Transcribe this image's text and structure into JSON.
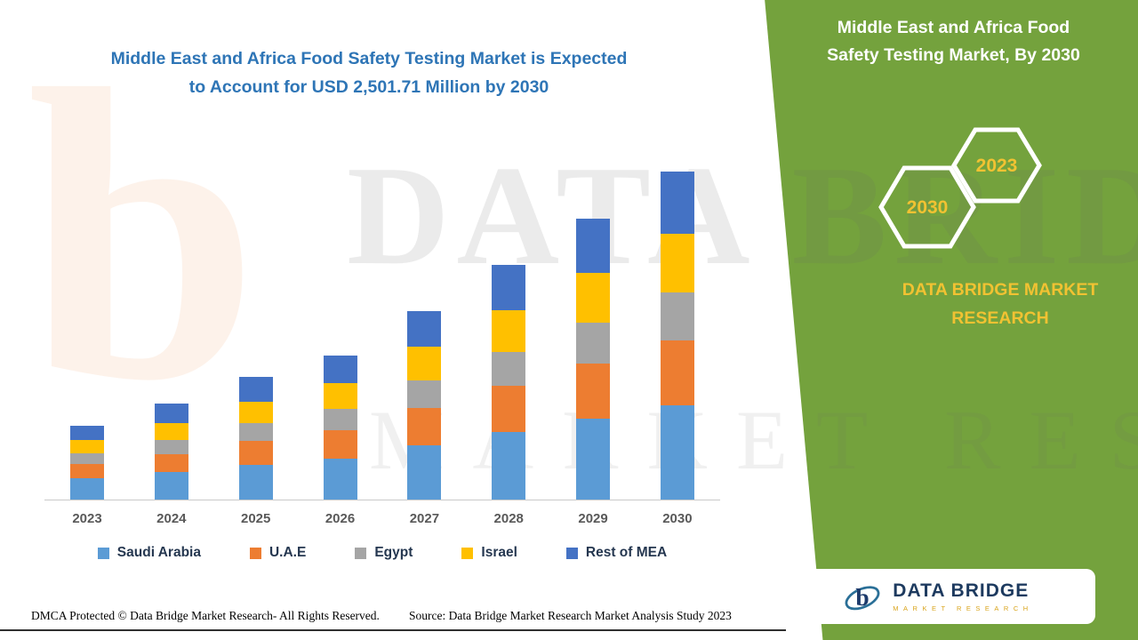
{
  "left_title": {
    "line1": "Middle East and Africa Food Safety Testing Market is Expected",
    "line2": "to Account for USD 2,501.71 Million by 2030"
  },
  "green_panel": {
    "title_line1": "Middle East and Africa Food",
    "title_line2": "Safety Testing Market, By 2030",
    "hex_back_year": "2030",
    "hex_front_year": "2023",
    "brand_line1": "DATA BRIDGE MARKET",
    "brand_line2": "RESEARCH"
  },
  "watermark": {
    "line1": "DATA BRIDGE",
    "line2": "MARKET RESEARCH",
    "logo_glyph": "b"
  },
  "logo_card": {
    "brand": "DATA BRIDGE",
    "tagline": "MARKET RESEARCH"
  },
  "footer": {
    "dmca": "DMCA Protected © Data Bridge Market Research- All Rights Reserved.",
    "source": "Source: Data Bridge Market Research Market Analysis Study 2023"
  },
  "colors": {
    "green_panel": "#74a23d",
    "title_blue": "#2e75b6",
    "accent_yellow": "#f1c232"
  },
  "chart_data": {
    "type": "bar",
    "stacked": true,
    "title": "Middle East and Africa Food Safety Testing Market is Expected to Account for USD 2,501.71 Million by 2030",
    "categories": [
      "2023",
      "2024",
      "2025",
      "2026",
      "2027",
      "2028",
      "2029",
      "2030"
    ],
    "series": [
      {
        "name": "Saudi Arabia",
        "color": "#5B9BD5",
        "values": [
          170,
          215,
          270,
          320,
          420,
          520,
          620,
          725
        ]
      },
      {
        "name": "U.A.E",
        "color": "#ED7D31",
        "values": [
          110,
          140,
          180,
          215,
          280,
          350,
          420,
          490
        ]
      },
      {
        "name": "Egypt",
        "color": "#A5A5A5",
        "values": [
          80,
          105,
          135,
          160,
          210,
          260,
          310,
          365
        ]
      },
      {
        "name": "Israel",
        "color": "#FFC000",
        "values": [
          100,
          130,
          165,
          195,
          255,
          315,
          380,
          445
        ]
      },
      {
        "name": "Rest of MEA",
        "color": "#4472C4",
        "values": [
          110,
          150,
          190,
          210,
          275,
          345,
          410,
          476.71
        ]
      }
    ],
    "estimated_totals": [
      570,
      740,
      940,
      1100,
      1440,
      1790,
      2140,
      2501.71
    ],
    "units": "USD Million",
    "xlabel": "",
    "ylabel": "",
    "ylim": [
      0,
      2600
    ],
    "grid": false,
    "y_axis_visible": false,
    "legend_position": "bottom"
  }
}
